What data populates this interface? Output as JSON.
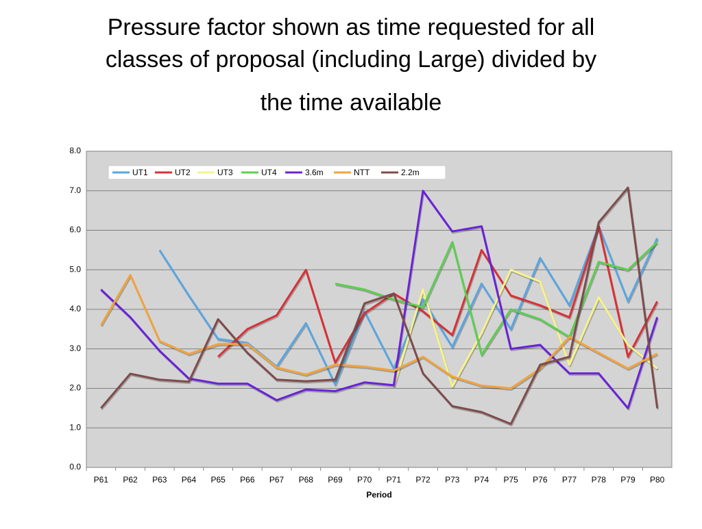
{
  "chart_data": {
    "type": "line",
    "title_lines": [
      "Pressure factor shown as time requested for all",
      "classes of proposal (including Large) divided by",
      "the time available"
    ],
    "x_label": "Period",
    "categories": [
      "P61",
      "P62",
      "P63",
      "P64",
      "P65",
      "P66",
      "P67",
      "P68",
      "P69",
      "P70",
      "P71",
      "P72",
      "P73",
      "P74",
      "P75",
      "P76",
      "P77",
      "P78",
      "P79",
      "P80"
    ],
    "series": [
      {
        "name": "UT1",
        "color": "#5aa5e0",
        "values": [
          null,
          null,
          5.5,
          4.35,
          3.25,
          3.15,
          2.55,
          3.65,
          2.1,
          3.95,
          2.5,
          4.25,
          3.05,
          4.65,
          3.5,
          5.3,
          4.1,
          6.1,
          4.2,
          5.8
        ]
      },
      {
        "name": "UT2",
        "color": "#d93036",
        "values": [
          null,
          null,
          null,
          null,
          2.8,
          3.5,
          3.85,
          5.0,
          2.65,
          3.9,
          4.4,
          3.95,
          3.35,
          5.5,
          4.35,
          4.1,
          3.8,
          6.1,
          2.8,
          4.2
        ]
      },
      {
        "name": "UT3",
        "color": "#f7f38a",
        "values": [
          null,
          null,
          null,
          null,
          null,
          null,
          null,
          null,
          null,
          null,
          2.05,
          4.5,
          2.05,
          3.4,
          5.0,
          4.7,
          2.6,
          4.3,
          3.1,
          2.5
        ]
      },
      {
        "name": "UT4",
        "color": "#5ccf4e",
        "values": [
          null,
          null,
          null,
          null,
          null,
          null,
          null,
          null,
          4.65,
          4.5,
          4.25,
          4.05,
          5.7,
          2.85,
          4.0,
          3.75,
          3.3,
          5.2,
          5.0,
          5.7
        ]
      },
      {
        "name": "3.6m",
        "color": "#6a22d8",
        "values": [
          4.5,
          3.8,
          2.95,
          2.25,
          2.12,
          2.12,
          1.7,
          1.97,
          1.93,
          2.15,
          2.08,
          7.0,
          5.97,
          6.1,
          3.0,
          3.1,
          2.38,
          2.38,
          1.5,
          3.8
        ]
      },
      {
        "name": "NTT",
        "color": "#f2a33c",
        "values": [
          3.6,
          4.87,
          3.2,
          2.87,
          3.12,
          3.12,
          2.53,
          2.35,
          2.6,
          2.55,
          2.45,
          2.8,
          2.3,
          2.07,
          2.0,
          2.5,
          3.3,
          2.9,
          2.5,
          2.88
        ]
      },
      {
        "name": "2.2m",
        "color": "#7f4b4b",
        "values": [
          1.5,
          2.37,
          2.22,
          2.17,
          3.75,
          2.9,
          2.22,
          2.18,
          2.22,
          4.15,
          4.4,
          2.38,
          1.55,
          1.4,
          1.1,
          2.6,
          2.8,
          6.2,
          7.08,
          1.5
        ]
      }
    ],
    "ylim": [
      0,
      8
    ],
    "yticks": [
      {
        "value": 0,
        "label": "0.0"
      },
      {
        "value": 1,
        "label": "1.0"
      },
      {
        "value": 2,
        "label": "2.0"
      },
      {
        "value": 3,
        "label": "3.0"
      },
      {
        "value": 4,
        "label": "4.0"
      },
      {
        "value": 5,
        "label": "5.0"
      },
      {
        "value": 6,
        "label": "6.0"
      },
      {
        "value": 7,
        "label": "7.0"
      },
      {
        "value": 8,
        "label": "8.0"
      }
    ],
    "grid": true,
    "legend": "top-left"
  }
}
